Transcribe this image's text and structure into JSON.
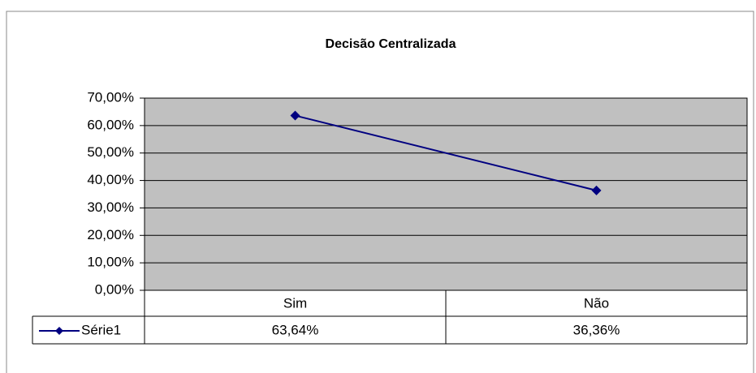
{
  "chart_data": {
    "type": "line",
    "title": "Decisão Centralizada",
    "categories": [
      "Sim",
      "Não"
    ],
    "series": [
      {
        "name": "Série1",
        "color": "#000080",
        "values": [
          63.64,
          36.36
        ],
        "value_labels": [
          "63,64%",
          "36,36%"
        ]
      }
    ],
    "ylim": [
      0,
      70
    ],
    "yticks": [
      {
        "value": 0,
        "label": "0,00%"
      },
      {
        "value": 10,
        "label": "10,00%"
      },
      {
        "value": 20,
        "label": "20,00%"
      },
      {
        "value": 30,
        "label": "30,00%"
      },
      {
        "value": 40,
        "label": "40,00%"
      },
      {
        "value": 50,
        "label": "50,00%"
      },
      {
        "value": 60,
        "label": "60,00%"
      },
      {
        "value": 70,
        "label": "70,00%"
      }
    ],
    "grid": true,
    "plot_background": "#c0c0c0"
  }
}
